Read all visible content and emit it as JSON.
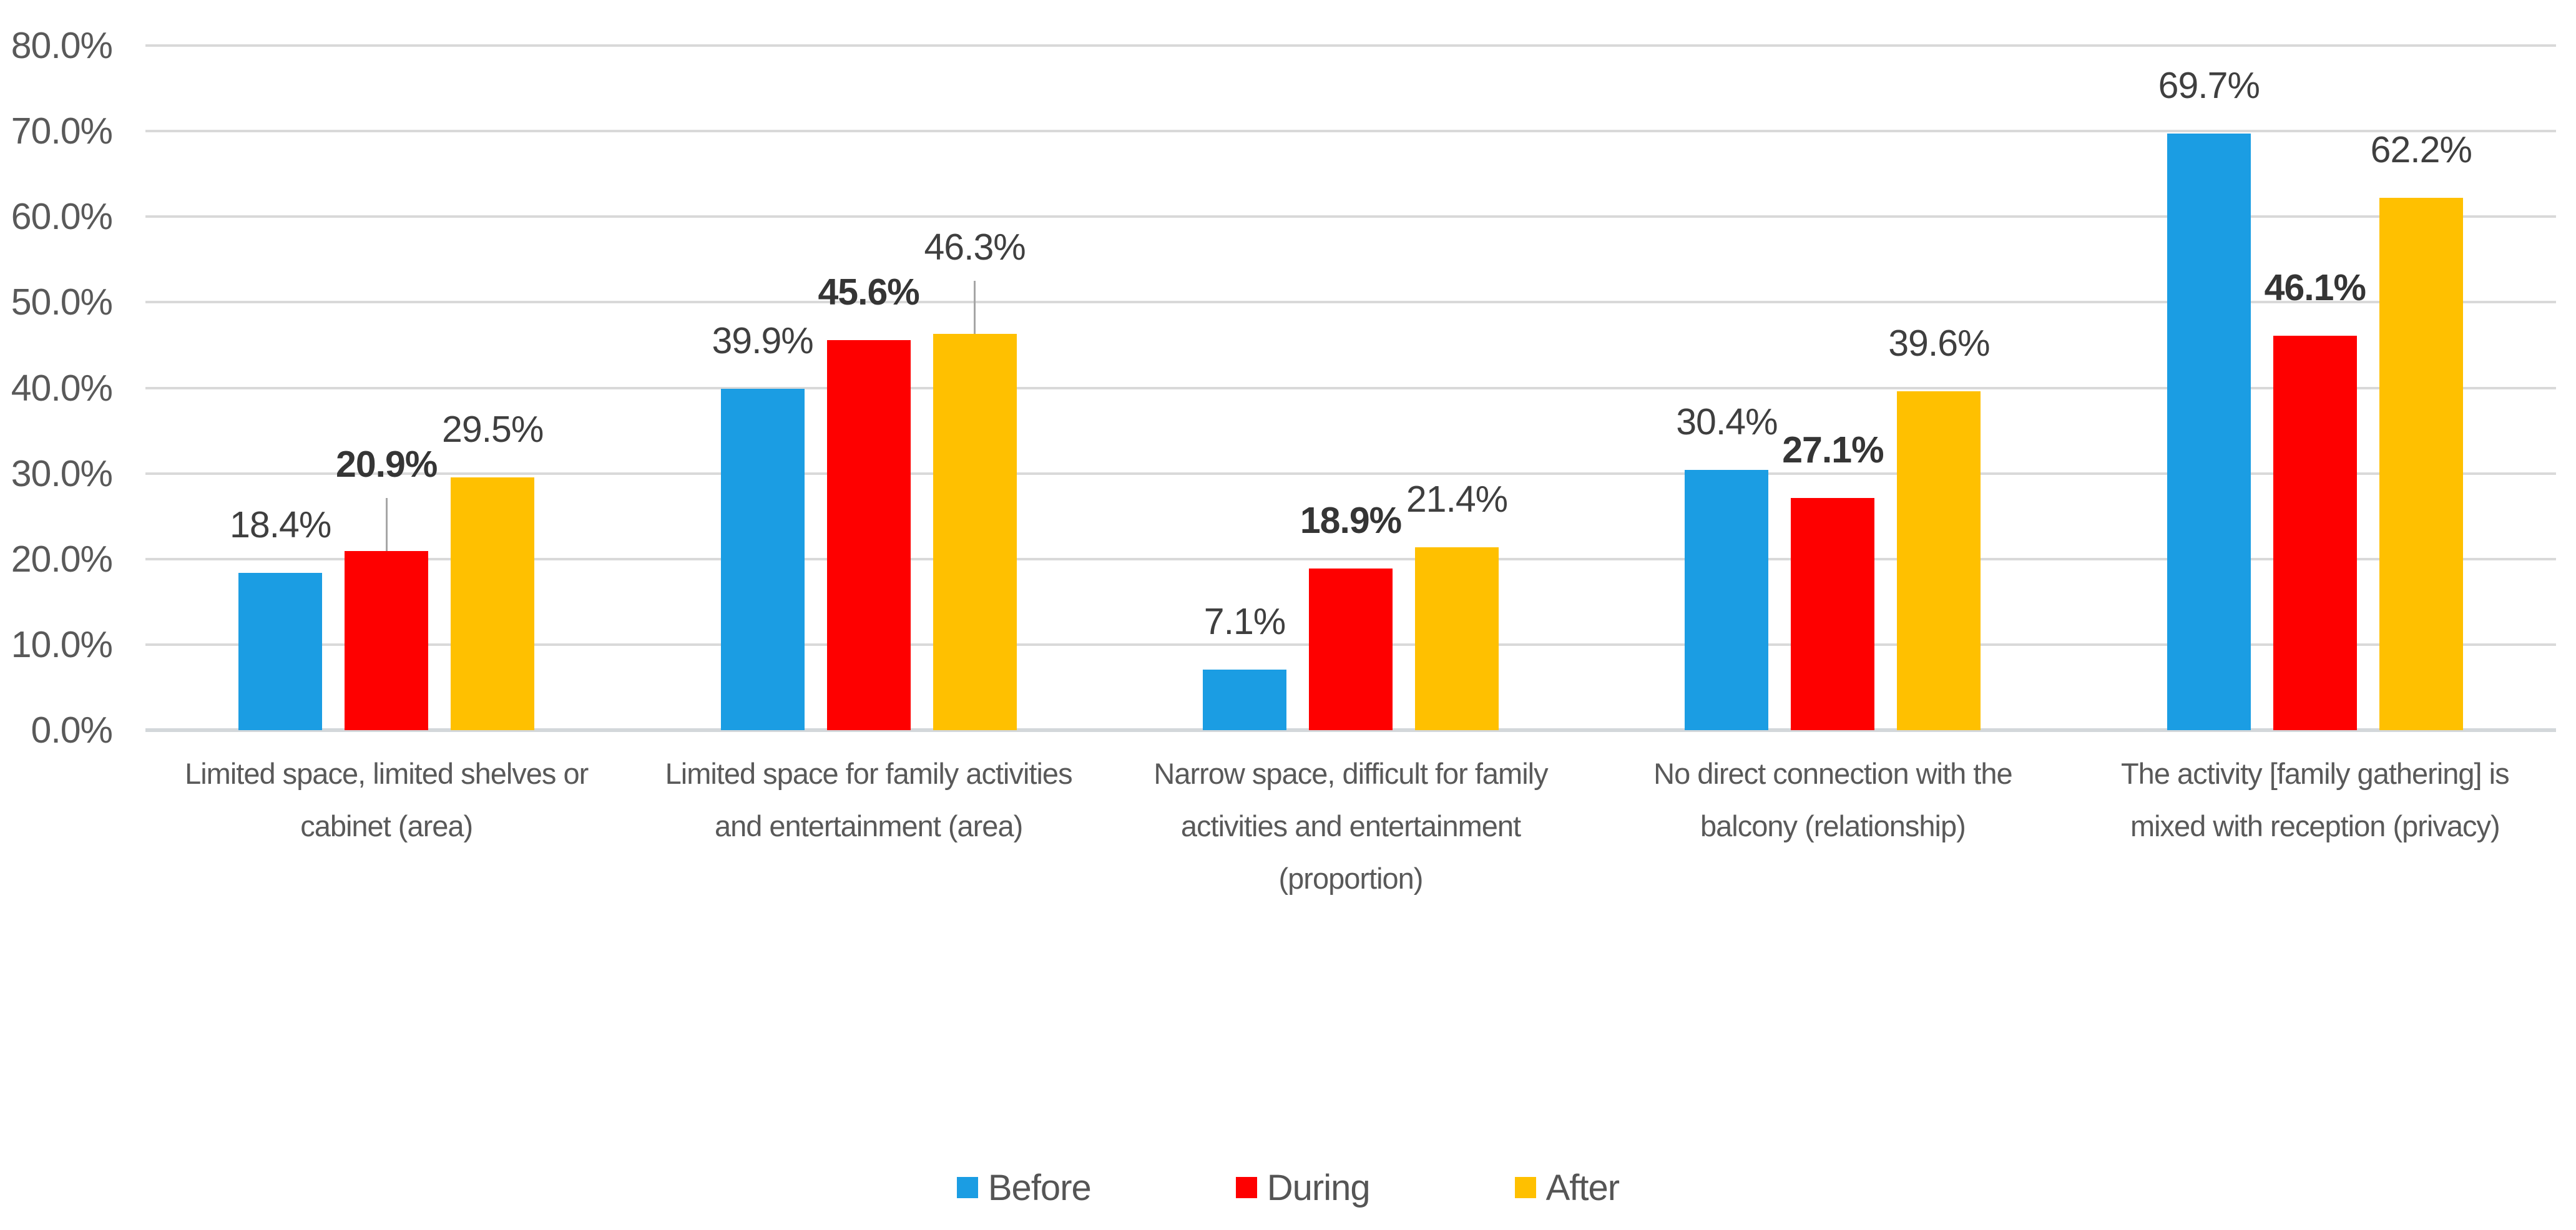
{
  "chart_data": {
    "type": "bar",
    "title": "",
    "grid": true,
    "legend_position": "bottom",
    "y_axis": {
      "min": 0,
      "max": 80,
      "step": 10,
      "tick_labels": [
        "0.0%",
        "10.0%",
        "20.0%",
        "30.0%",
        "40.0%",
        "50.0%",
        "60.0%",
        "70.0%",
        "80.0%"
      ]
    },
    "categories": [
      "Limited space, limited shelves or\ncabinet (area)",
      "Limited space for family activities\nand entertainment (area)",
      "Narrow space, difficult for family\nactivities and entertainment\n(proportion)",
      "No direct connection with the\nbalcony (relationship)",
      "The activity [family gathering] is\nmixed with reception (privacy)"
    ],
    "series": [
      {
        "name": "Before",
        "color": "#1b9de3",
        "values": [
          18.4,
          39.9,
          7.1,
          30.4,
          69.7
        ],
        "labels": [
          "18.4%",
          "39.9%",
          "7.1%",
          "30.4%",
          "69.7%"
        ],
        "bold_labels": false
      },
      {
        "name": "During",
        "color": "#fe0000",
        "values": [
          20.9,
          45.6,
          18.9,
          27.1,
          46.1
        ],
        "labels": [
          "20.9%",
          "45.6%",
          "18.9%",
          "27.1%",
          "46.1%"
        ],
        "bold_labels": true
      },
      {
        "name": "After",
        "color": "#ffc000",
        "values": [
          29.5,
          46.3,
          21.4,
          39.6,
          62.2
        ],
        "labels": [
          "29.5%",
          "46.3%",
          "21.4%",
          "39.6%",
          "62.2%"
        ],
        "bold_labels": false
      }
    ],
    "leader_lines": [
      {
        "category_index": 0,
        "series_index": 1
      },
      {
        "category_index": 1,
        "series_index": 2
      }
    ]
  },
  "colors": {
    "gridline": "#d9d9d9",
    "axis_baseline": "#d3d7da",
    "axis_text": "#595959",
    "data_label_text": "#3f3f3f",
    "leader_line": "#a6a6a6"
  }
}
